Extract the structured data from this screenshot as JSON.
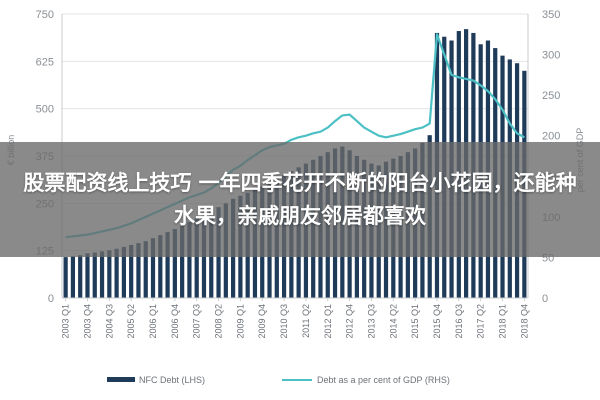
{
  "overlay": {
    "title": "股票配资线上技巧 一年四季花开不断的阳台小花园，还能种水果，亲戚朋友邻居都喜欢"
  },
  "chart_data": {
    "type": "bar",
    "title": "",
    "ylabel_left": "€ billion",
    "ylabel_right": "per cent of GDP",
    "ylim_left": [
      0,
      750
    ],
    "ylim_right": [
      0,
      350
    ],
    "yticks_left": [
      "0",
      "125",
      "250",
      "375",
      "500",
      "625",
      "750"
    ],
    "yticks_right": [
      "0",
      "50",
      "100",
      "150",
      "200",
      "250",
      "300",
      "350"
    ],
    "grid": true,
    "legend_position": "bottom",
    "x": [
      "2003 Q1",
      "2003 Q2",
      "2003 Q3",
      "2003 Q4",
      "2004 Q1",
      "2004 Q2",
      "2004 Q3",
      "2004 Q4",
      "2005 Q1",
      "2005 Q2",
      "2005 Q3",
      "2005 Q4",
      "2006 Q1",
      "2006 Q2",
      "2006 Q3",
      "2006 Q4",
      "2007 Q1",
      "2007 Q2",
      "2007 Q3",
      "2007 Q4",
      "2008 Q1",
      "2008 Q2",
      "2008 Q3",
      "2008 Q4",
      "2009 Q1",
      "2009 Q2",
      "2009 Q3",
      "2009 Q4",
      "2010 Q1",
      "2010 Q2",
      "2010 Q3",
      "2010 Q4",
      "2011 Q1",
      "2011 Q2",
      "2011 Q3",
      "2011 Q4",
      "2012 Q1",
      "2012 Q2",
      "2012 Q3",
      "2012 Q4",
      "2013 Q1",
      "2013 Q2",
      "2013 Q3",
      "2013 Q4",
      "2014 Q1",
      "2014 Q2",
      "2014 Q3",
      "2014 Q4",
      "2015 Q1",
      "2015 Q2",
      "2015 Q3",
      "2015 Q4",
      "2016 Q1",
      "2016 Q2",
      "2016 Q3",
      "2016 Q4",
      "2017 Q1",
      "2017 Q2",
      "2017 Q3",
      "2017 Q4",
      "2018 Q1",
      "2018 Q2",
      "2018 Q3",
      "2018 Q4"
    ],
    "x_tick_labels": [
      "2003 Q1",
      "2003 Q4",
      "2004 Q3",
      "2005 Q2",
      "2006 Q1",
      "2006 Q4",
      "2007 Q3",
      "2008 Q2",
      "2009 Q1",
      "2009 Q4",
      "2010 Q3",
      "2011 Q2",
      "2012 Q1",
      "2012 Q4",
      "2013 Q3",
      "2014 Q2",
      "2015 Q1",
      "2015 Q4",
      "2016 Q3",
      "2017 Q2",
      "2018 Q1",
      "2018 Q4"
    ],
    "series": [
      {
        "name": "NFC Debt (LHS)",
        "axis": "left",
        "kind": "bar",
        "color": "#1f3b5a",
        "values": [
          108,
          110,
          113,
          118,
          120,
          123,
          126,
          130,
          135,
          140,
          145,
          150,
          158,
          166,
          174,
          182,
          190,
          200,
          210,
          220,
          230,
          240,
          250,
          262,
          270,
          278,
          288,
          295,
          305,
          315,
          325,
          335,
          345,
          355,
          365,
          375,
          385,
          395,
          400,
          390,
          375,
          365,
          355,
          350,
          360,
          368,
          375,
          385,
          395,
          410,
          430,
          700,
          690,
          680,
          705,
          710,
          700,
          670,
          680,
          660,
          640,
          630,
          620,
          600
        ]
      },
      {
        "name": "Debt as a per cent of GDP (RHS)",
        "axis": "right",
        "kind": "line",
        "color": "#4cc0c4",
        "values": [
          75,
          76,
          77,
          78,
          80,
          82,
          84,
          86,
          89,
          92,
          96,
          100,
          104,
          108,
          112,
          116,
          120,
          124,
          127,
          130,
          135,
          142,
          150,
          158,
          163,
          170,
          176,
          182,
          186,
          188,
          190,
          195,
          198,
          200,
          203,
          205,
          210,
          218,
          225,
          226,
          218,
          210,
          205,
          200,
          198,
          200,
          202,
          205,
          208,
          210,
          215,
          325,
          300,
          275,
          272,
          270,
          268,
          262,
          255,
          245,
          232,
          215,
          203,
          198
        ]
      }
    ]
  }
}
